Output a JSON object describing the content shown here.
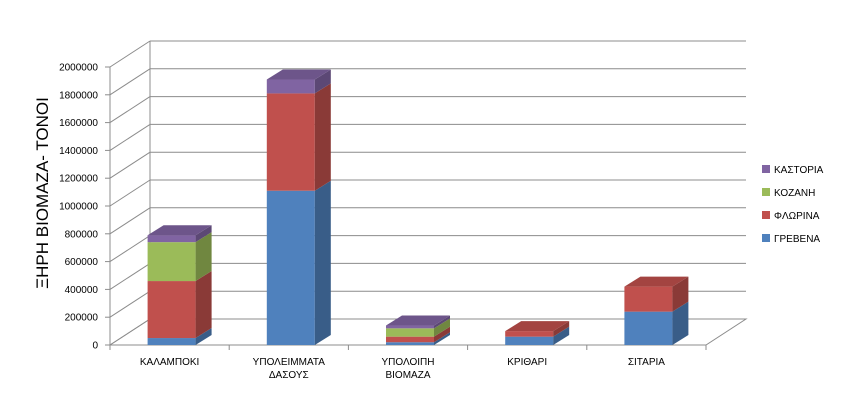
{
  "chart_data": {
    "type": "bar",
    "stacked": true,
    "three_d": true,
    "title": "",
    "xlabel": "",
    "ylabel": "ΞΗΡΗ ΒΙΟΜΑΖΑ- ΤΟΝΟΙ",
    "ylim": [
      0,
      2000000
    ],
    "yticks": [
      "0",
      "200000",
      "400000",
      "600000",
      "800000",
      "1000000",
      "1200000",
      "1400000",
      "1600000",
      "1800000",
      "2000000"
    ],
    "ytick_values": [
      0,
      200000,
      400000,
      600000,
      800000,
      1000000,
      1200000,
      1400000,
      1600000,
      1800000,
      2000000
    ],
    "grid": true,
    "legend_position": "right",
    "categories": [
      [
        "ΚΑΛΑΜΠΟΚΙ"
      ],
      [
        "ΥΠΟΛΕΙΜΜΑΤΑ",
        "ΔΑΣΟΥΣ"
      ],
      [
        "ΥΠΟΛΟΙΠΗ",
        "ΒΙΟΜΑΖΑ"
      ],
      [
        "ΚΡΙΘΑΡΙ"
      ],
      [
        "ΣΙΤΑΡΙΑ"
      ]
    ],
    "series": [
      {
        "name": "ΓΡΕΒΕΝΑ",
        "color": "#4F81BD",
        "values": [
          50000,
          1110000,
          20000,
          60000,
          240000
        ]
      },
      {
        "name": "ΦΛΩΡΙΝΑ",
        "color": "#C0504D",
        "values": [
          410000,
          700000,
          40000,
          40000,
          180000
        ]
      },
      {
        "name": "ΚΟΖΑΝΗ",
        "color": "#9BBB59",
        "values": [
          280000,
          0,
          60000,
          0,
          0
        ]
      },
      {
        "name": "ΚΑΣΤΟΡΙΑ",
        "color": "#8064A2",
        "values": [
          50000,
          100000,
          20000,
          0,
          0
        ]
      }
    ],
    "legend_order": [
      "ΚΑΣΤΟΡΙΑ",
      "ΚΟΖΑΝΗ",
      "ΦΛΩΡΙΝΑ",
      "ΓΡΕΒΕΝΑ"
    ]
  }
}
